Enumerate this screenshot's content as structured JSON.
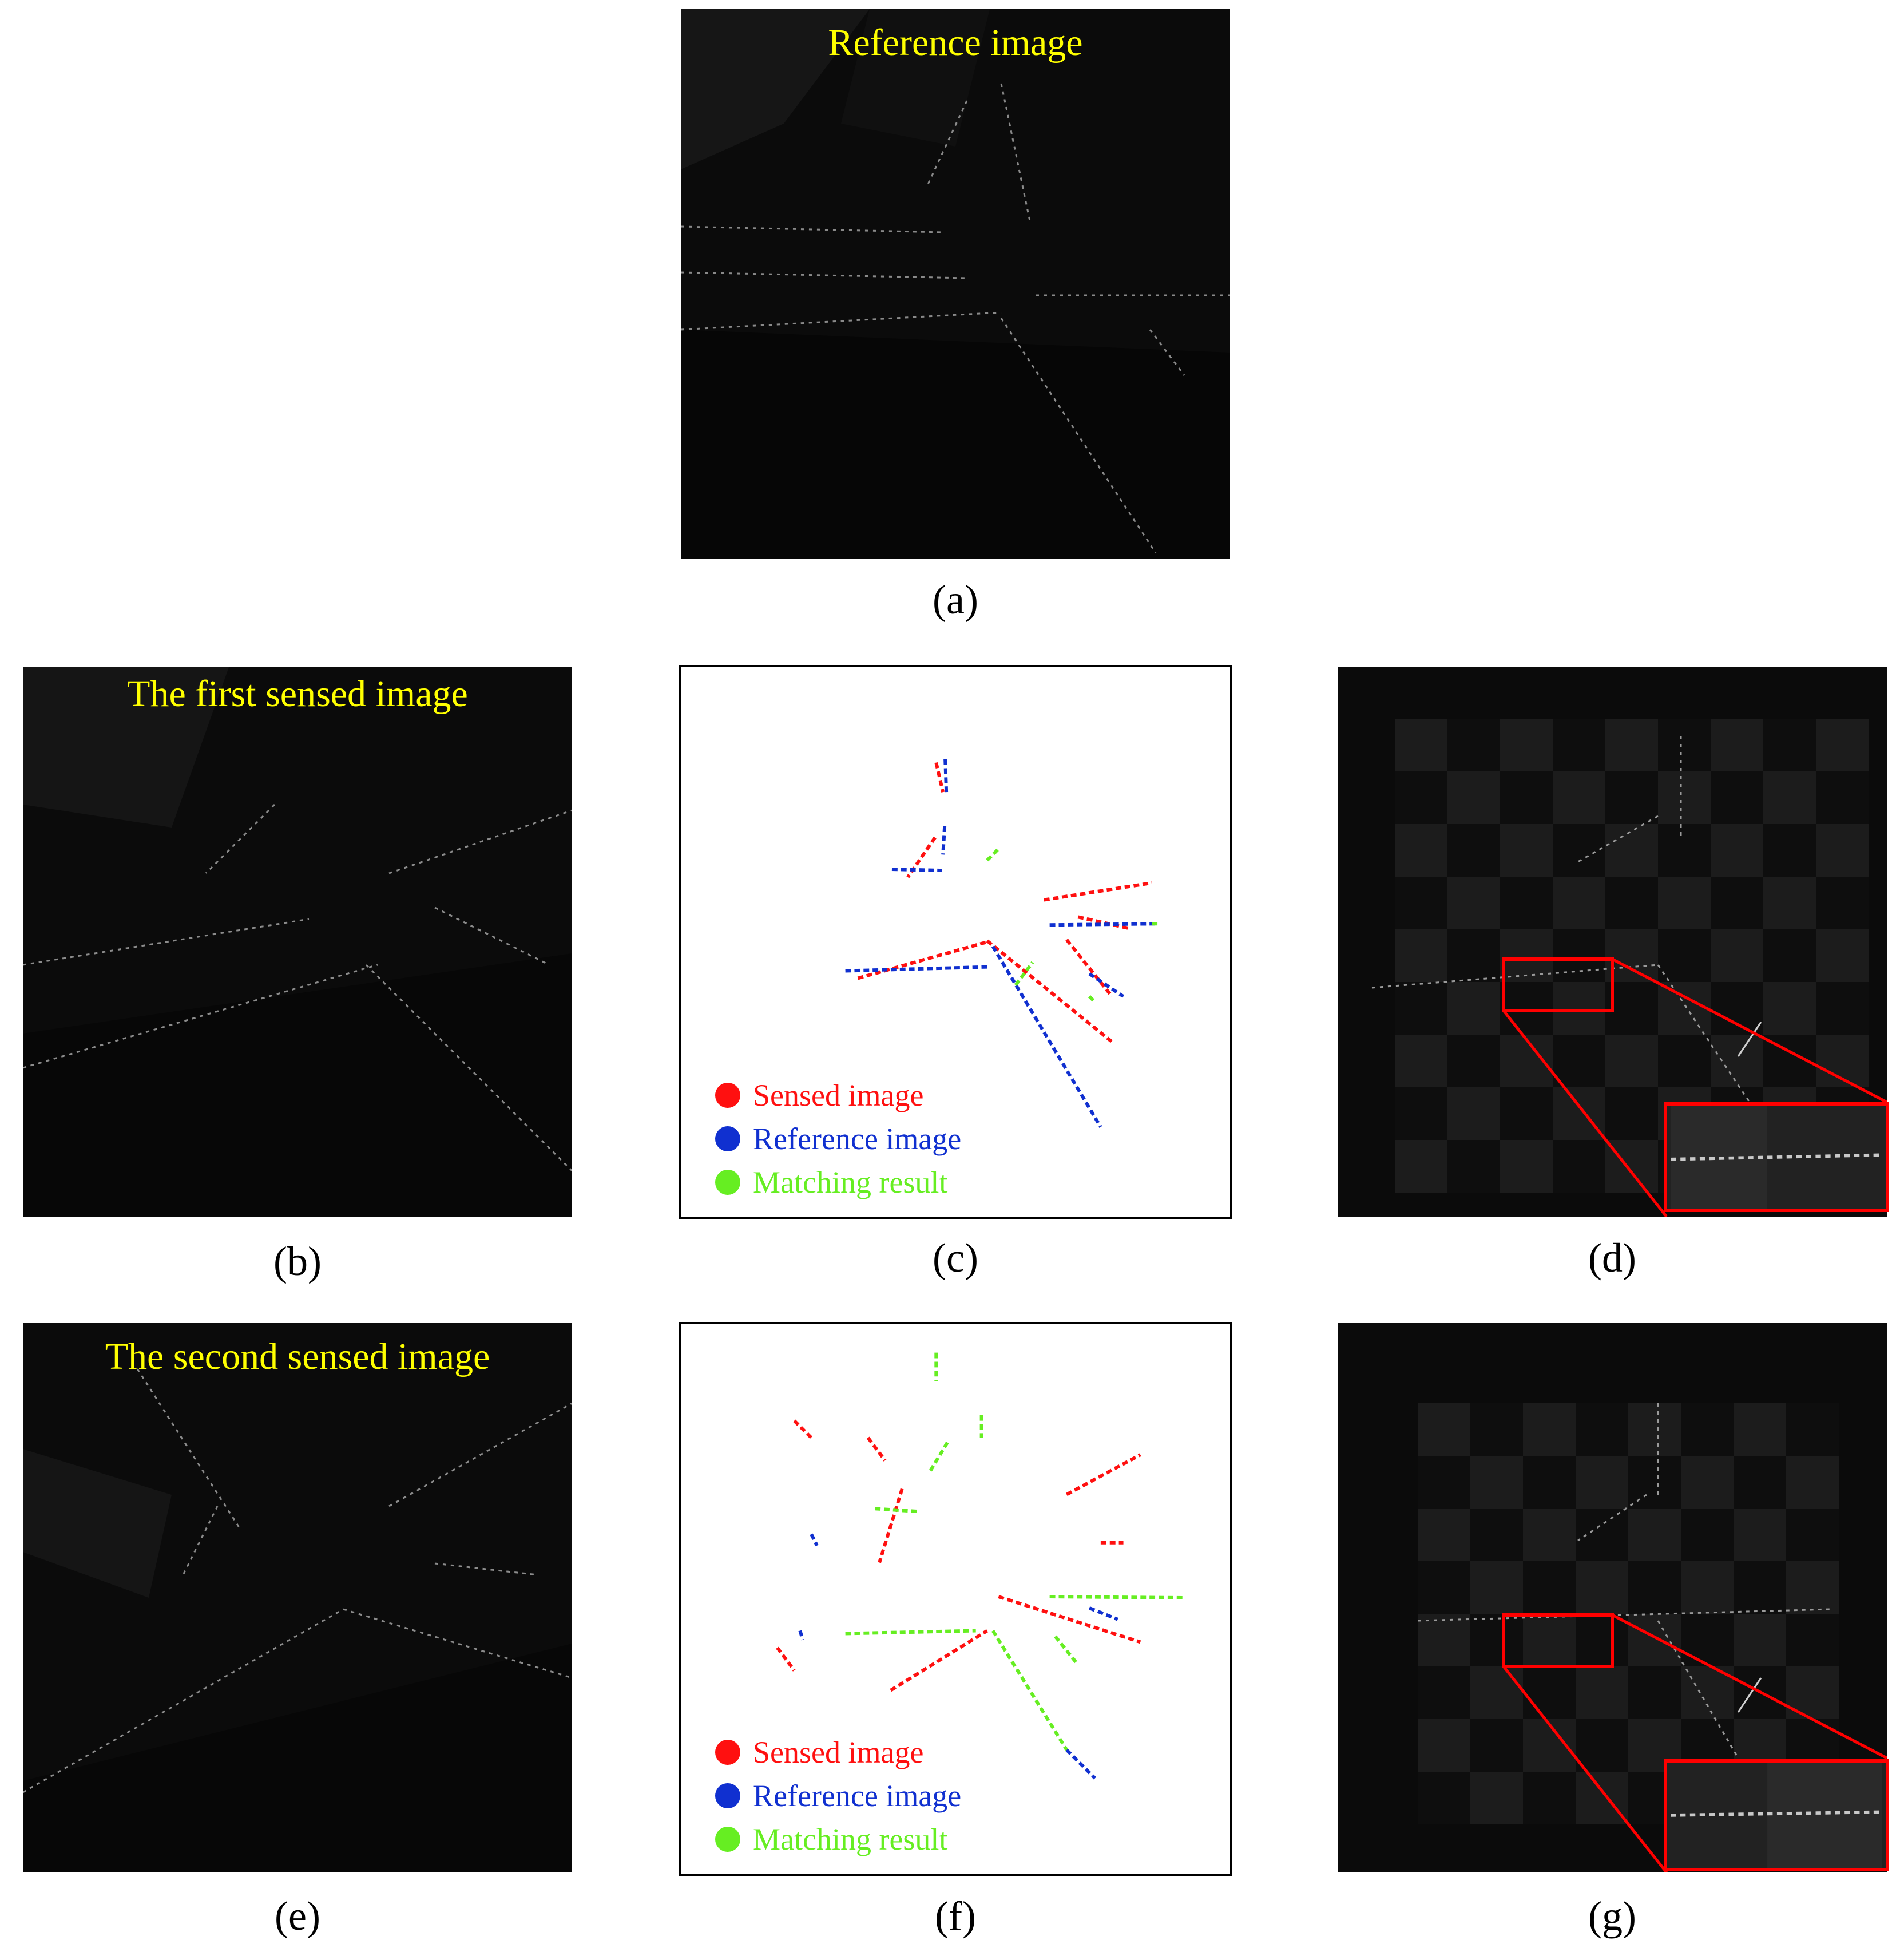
{
  "panels": {
    "a": {
      "title": "Reference image",
      "caption": "(a)"
    },
    "b": {
      "title": "The first sensed image",
      "caption": "(b)"
    },
    "c": {
      "caption": "(c)"
    },
    "d": {
      "caption": "(d)"
    },
    "e": {
      "title": "The second sensed image",
      "caption": "(e)"
    },
    "f": {
      "caption": "(f)"
    },
    "g": {
      "caption": "(g)"
    }
  },
  "legend": {
    "sensed": "Sensed image",
    "reference": "Reference image",
    "matching": "Matching result"
  },
  "colors": {
    "sensed": "#ff1010",
    "reference": "#1030d0",
    "matching": "#66ee22",
    "title": "#ffff00",
    "zoom_box": "#ff0000"
  }
}
